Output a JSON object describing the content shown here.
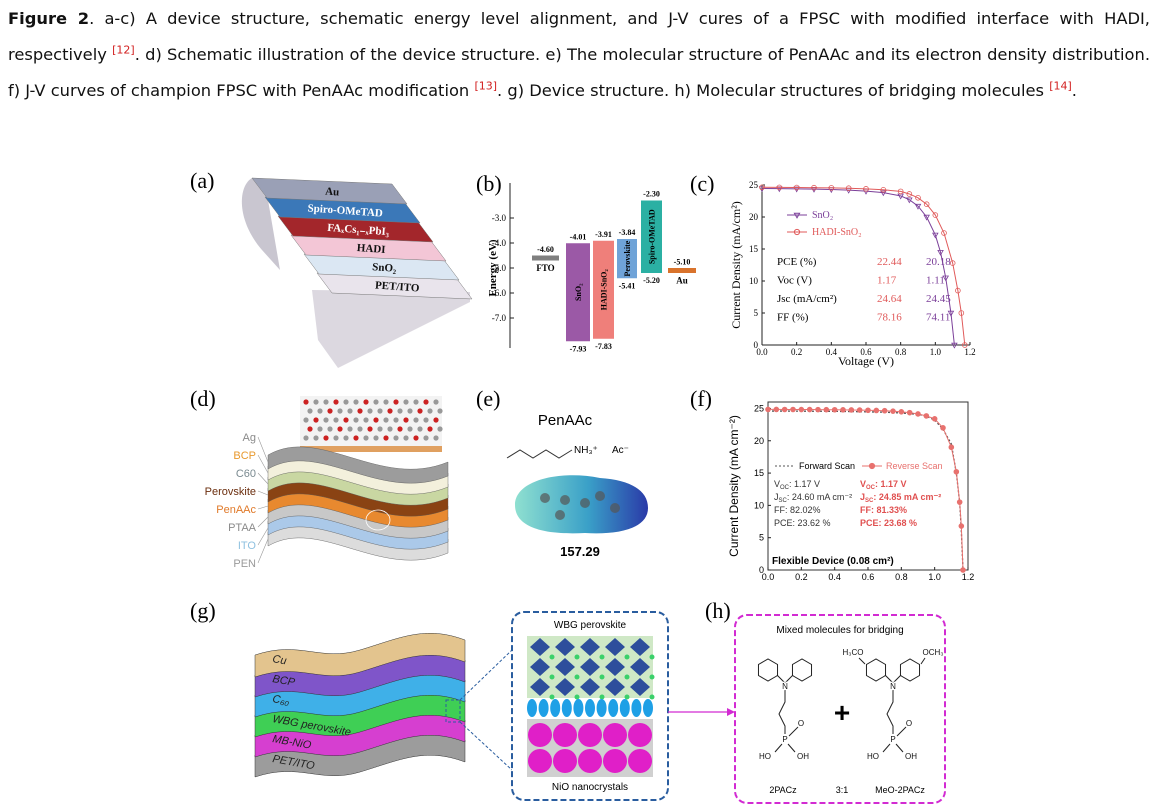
{
  "caption": {
    "label": "Figure 2",
    "text1": ". a-c) A device structure, schematic energy level alignment, and J-V cures of a FPSC with modified interface with HADI, respectively ",
    "ref1": "[12]",
    "text2": ". d) Schematic illustration of the device structure. e) The molecular structure of PenAAc and its electron density distribution. f) J-V curves of champion FPSC with PenAAc modification ",
    "ref2": "[13]",
    "text3": ". g) Device structure. h) Molecular structures of bridging molecules ",
    "ref3": "[14]",
    "end": "."
  },
  "panels": {
    "a": {
      "label": "(a)",
      "layers": [
        {
          "name": "Au",
          "color": "#9aa0b6",
          "text_color": "#111"
        },
        {
          "name": "Spiro-OMeTAD",
          "color": "#3b78b8",
          "text_color": "#fff"
        },
        {
          "name": "FAₓCs₁₋ₓPbI₃",
          "color": "#a3262b",
          "text_color": "#fff"
        },
        {
          "name": "HADI",
          "color": "#f3c6d6",
          "text_color": "#111"
        },
        {
          "name": "SnO₂",
          "color": "#dbe7f3",
          "text_color": "#111"
        },
        {
          "name": "PET/ITO",
          "color": "#e9e4ec",
          "text_color": "#111"
        }
      ]
    },
    "b": {
      "label": "(b)",
      "ylabel": "Energy (eV)",
      "ylim": [
        -8.2,
        -1.6
      ],
      "yticks": [
        {
          "value": -3,
          "label": "-3.0"
        },
        {
          "value": -4,
          "label": "-4.0"
        },
        {
          "value": -5,
          "label": "-5.0"
        },
        {
          "value": -6,
          "label": "-6.0"
        },
        {
          "value": -7,
          "label": "-7.0"
        }
      ],
      "bands": [
        {
          "name": "FTO",
          "color": "#7f7f7f",
          "level": {
            "value": -4.6,
            "label": "-4.60"
          }
        },
        {
          "name": "SnO₂",
          "color": "#9b59a6",
          "top": {
            "value": -4.01,
            "label": "-4.01"
          },
          "bottom": {
            "value": -7.93,
            "label": "-7.93"
          }
        },
        {
          "name": "HADI-SnO₂",
          "color": "#ef7f7a",
          "top": {
            "value": -3.91,
            "label": "-3.91"
          },
          "bottom": {
            "value": -7.83,
            "label": "-7.83"
          }
        },
        {
          "name": "Perovskite",
          "color": "#6fa3d8",
          "top": {
            "value": -3.84,
            "label": "-3.84"
          },
          "bottom": {
            "value": -5.41,
            "label": "-5.41"
          }
        },
        {
          "name": "Spiro-OMeTAD",
          "color": "#2bb0a3",
          "top": {
            "value": -2.3,
            "label": "-2.30"
          },
          "bottom": {
            "value": -5.2,
            "label": "-5.20"
          }
        },
        {
          "name": "Au",
          "color": "#d9732c",
          "level": {
            "value": -5.1,
            "label": "-5.10"
          }
        }
      ]
    },
    "c": {
      "label": "(c)",
      "xlabel": "Voltage (V)",
      "ylabel": "Current Density (mA/cm²)",
      "xlim": [
        0,
        1.2
      ],
      "ylim": [
        0,
        25
      ],
      "xticks": [
        {
          "value": 0,
          "label": "0.0"
        },
        0.2,
        0.4,
        0.6,
        0.8,
        {
          "value": 1,
          "label": "1.0"
        },
        1.2
      ],
      "yticks": [
        0,
        5,
        10,
        15,
        20,
        25
      ],
      "series": [
        {
          "name": "SnO₂",
          "color": "#7b3f99",
          "marker": "triangle",
          "x": [
            0,
            0.1,
            0.2,
            0.3,
            0.4,
            0.5,
            0.6,
            0.7,
            0.8,
            0.85,
            0.9,
            0.95,
            1.0,
            1.03,
            1.06,
            1.09,
            1.11
          ],
          "y": [
            24.45,
            24.43,
            24.4,
            24.35,
            24.3,
            24.2,
            24.05,
            23.8,
            23.3,
            22.7,
            21.7,
            20.0,
            17.2,
            14.5,
            10.5,
            5.0,
            0
          ]
        },
        {
          "name": "HADI-SnO₂",
          "color": "#e05a5a",
          "marker": "circle",
          "x": [
            0,
            0.1,
            0.2,
            0.3,
            0.4,
            0.5,
            0.6,
            0.7,
            0.8,
            0.85,
            0.9,
            0.95,
            1.0,
            1.05,
            1.1,
            1.13,
            1.15,
            1.17
          ],
          "y": [
            24.64,
            24.62,
            24.6,
            24.58,
            24.55,
            24.5,
            24.4,
            24.25,
            24.0,
            23.6,
            23.0,
            22.0,
            20.3,
            17.5,
            12.8,
            8.5,
            5.0,
            0
          ]
        }
      ],
      "table": [
        [
          "PCE (%)",
          22.44,
          20.18
        ],
        [
          "Voc (V)",
          1.17,
          1.11
        ],
        [
          "Jsc (mA/cm²)",
          24.64,
          24.45
        ],
        [
          "FF (%)",
          78.16,
          74.11
        ]
      ]
    },
    "d": {
      "label": "(d)",
      "layers": [
        {
          "name": "Ag",
          "color": "#9c9c9c",
          "label_color": "#8a8a8a"
        },
        {
          "name": "BCP",
          "color": "#f3f0dc",
          "label_color": "#e8992e"
        },
        {
          "name": "C60",
          "color": "#c9d7a2",
          "label_color": "#7a8a90"
        },
        {
          "name": "Perovskite",
          "color": "#8a4313",
          "label_color": "#6b2e0e"
        },
        {
          "name": "PenAAc",
          "color": "#e8892f",
          "label_color": "#e07a2a"
        },
        {
          "name": "PTAA",
          "color": "#c8c8c8",
          "label_color": "#8a8a8a"
        },
        {
          "name": "ITO",
          "color": "#abc9e9",
          "label_color": "#8fc1e0"
        },
        {
          "name": "PEN",
          "color": "#dcdcdc",
          "label_color": "#9a9a9a"
        }
      ]
    },
    "e": {
      "label": "(e)",
      "title": "PenAAc",
      "cation": "NH₃⁺",
      "anion": "Ac⁻",
      "value": 157.29
    },
    "f": {
      "label": "(f)",
      "ylabel": "Current Density (mA cm⁻²)",
      "xlim": [
        0,
        1.2
      ],
      "ylim": [
        0,
        26
      ],
      "xticks": [
        {
          "value": 0,
          "label": "0.0"
        },
        0.2,
        0.4,
        0.6,
        0.8,
        {
          "value": 1,
          "label": "1.0"
        },
        1.2
      ],
      "yticks": [
        0,
        5,
        10,
        15,
        20,
        25
      ],
      "series": [
        {
          "name": "Forward Scan",
          "color": "#555555",
          "dashed": true,
          "x": [
            0,
            0.1,
            0.2,
            0.3,
            0.4,
            0.5,
            0.6,
            0.7,
            0.8,
            0.9,
            0.95,
            1.0,
            1.05,
            1.1,
            1.13,
            1.15,
            1.16,
            1.17
          ],
          "y": [
            24.6,
            24.6,
            24.58,
            24.57,
            24.55,
            24.52,
            24.48,
            24.42,
            24.3,
            24.1,
            23.8,
            23.2,
            21.8,
            19.5,
            15.0,
            10.5,
            6.0,
            0
          ]
        },
        {
          "name": "Reverse Scan",
          "color": "#e8716e",
          "marker": "circle",
          "x": [
            0,
            0.05,
            0.1,
            0.15,
            0.2,
            0.25,
            0.3,
            0.35,
            0.4,
            0.45,
            0.5,
            0.55,
            0.6,
            0.65,
            0.7,
            0.75,
            0.8,
            0.85,
            0.9,
            0.95,
            1.0,
            1.05,
            1.1,
            1.13,
            1.15,
            1.16,
            1.17
          ],
          "y": [
            24.85,
            24.85,
            24.84,
            24.84,
            24.83,
            24.83,
            24.82,
            24.81,
            24.8,
            24.79,
            24.77,
            24.75,
            24.72,
            24.69,
            24.65,
            24.58,
            24.48,
            24.35,
            24.15,
            23.85,
            23.4,
            22.0,
            19.0,
            15.2,
            10.5,
            6.8,
            0
          ]
        }
      ],
      "stats": [
        [
          {
            "text": "V",
            "sub": "OC",
            "after": ": 1.17 V"
          },
          {
            "text": "J",
            "sub": "SC",
            "after": ": 24.60 mA cm⁻²"
          },
          {
            "text": "FF: 82.02%"
          },
          {
            "text": "PCE: 23.62 %"
          }
        ],
        [
          {
            "text": "V",
            "sub": "OC",
            "after": ": 1.17 V"
          },
          {
            "text": "J",
            "sub": "SC",
            "after": ": 24.85 mA cm⁻²"
          },
          {
            "text": "FF: 81.33%"
          },
          {
            "text": "PCE: 23.68 %"
          }
        ]
      ],
      "note": "Flexible Device (0.08 cm²)"
    },
    "g": {
      "label": "(g)",
      "layers": [
        {
          "name": "Cu",
          "color": "#e3c48e"
        },
        {
          "name": "BCP",
          "color": "#7f55c9"
        },
        {
          "name": "C₆₀",
          "color": "#3fb0e8"
        },
        {
          "name": "WBG perovskite",
          "color": "#3fcf55"
        },
        {
          "name": "MB-NiO",
          "color": "#d63fd0"
        },
        {
          "name": "PET/ITO",
          "color": "#9c9c9c"
        }
      ],
      "inset_top": "WBG perovskite",
      "inset_bottom": "NiO nanocrystals"
    },
    "h": {
      "label": "(h)",
      "title": "Mixed molecules for bridging",
      "plus": "+",
      "ratio": "3:1",
      "molecules": [
        {
          "name": "2PACz",
          "atoms": [
            "N",
            "O",
            "P",
            "HO",
            "OH"
          ]
        },
        {
          "name": "MeO-2PACz",
          "atoms": [
            "H₃CO",
            "OCH₃",
            "N",
            "O",
            "P",
            "HO",
            "OH"
          ]
        }
      ]
    }
  }
}
